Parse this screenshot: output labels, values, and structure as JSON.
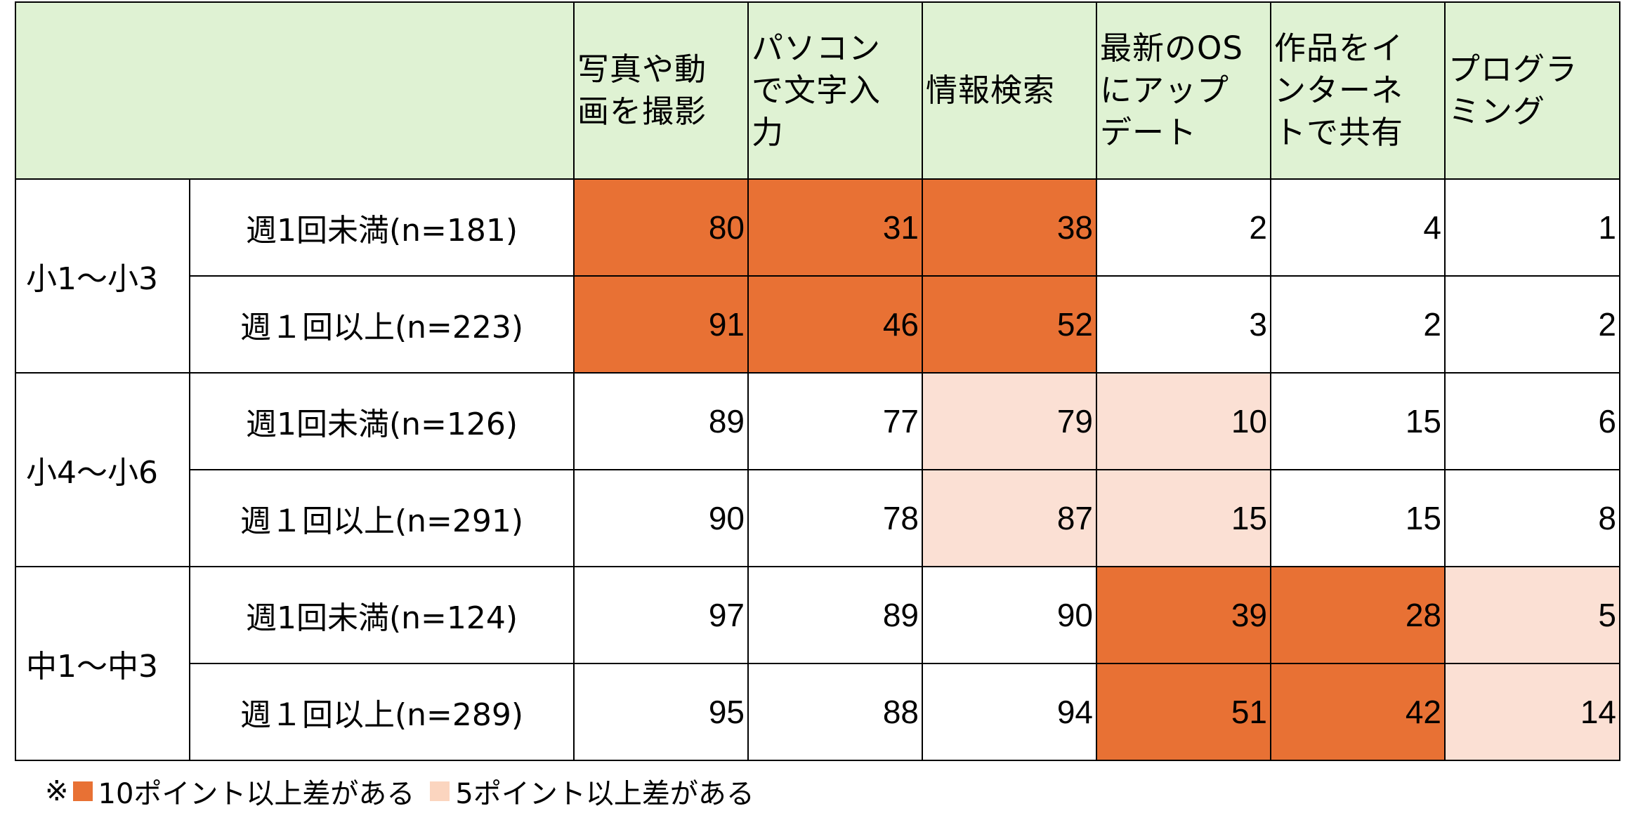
{
  "chart_data": {
    "type": "table",
    "columns": [
      "写真や動\n画を撮影",
      "パソコン\nで文字入\n力",
      "情報検索",
      "最新のOS\nにアップ\nデート",
      "作品をイ\nンターネ\nトで共有",
      "プログラ\nミング"
    ],
    "grades": [
      "小1～小3",
      "小4～小6",
      "中1～中3"
    ],
    "rows": [
      {
        "grade": "小1～小3",
        "group": "週1回未満(n=181)",
        "values": [
          80,
          31,
          38,
          2,
          4,
          1
        ],
        "highlight": [
          "strong",
          "strong",
          "strong",
          "none",
          "none",
          "none"
        ]
      },
      {
        "grade": "小1～小3",
        "group": "週１回以上(n=223)",
        "values": [
          91,
          46,
          52,
          3,
          2,
          2
        ],
        "highlight": [
          "strong",
          "strong",
          "strong",
          "none",
          "none",
          "none"
        ]
      },
      {
        "grade": "小4～小6",
        "group": "週1回未満(n=126)",
        "values": [
          89,
          77,
          79,
          10,
          15,
          6
        ],
        "highlight": [
          "none",
          "none",
          "light",
          "light",
          "none",
          "none"
        ]
      },
      {
        "grade": "小4～小6",
        "group": "週１回以上(n=291)",
        "values": [
          90,
          78,
          87,
          15,
          15,
          8
        ],
        "highlight": [
          "none",
          "none",
          "light",
          "light",
          "none",
          "none"
        ]
      },
      {
        "grade": "中1～中3",
        "group": "週1回未満(n=124)",
        "values": [
          97,
          89,
          90,
          39,
          28,
          5
        ],
        "highlight": [
          "none",
          "none",
          "none",
          "strong",
          "strong",
          "light"
        ]
      },
      {
        "grade": "中1～中3",
        "group": "週１回以上(n=289)",
        "values": [
          95,
          88,
          94,
          51,
          42,
          14
        ],
        "highlight": [
          "none",
          "none",
          "none",
          "strong",
          "strong",
          "light"
        ]
      }
    ],
    "legend": {
      "prefix": "※",
      "strong_label": "10ポイント以上差がある",
      "light_label": "5ポイント以上差がある"
    },
    "colors": {
      "header_bg": "#dff2d3",
      "strong": "#e87134",
      "light": "#fbe0d4"
    }
  }
}
